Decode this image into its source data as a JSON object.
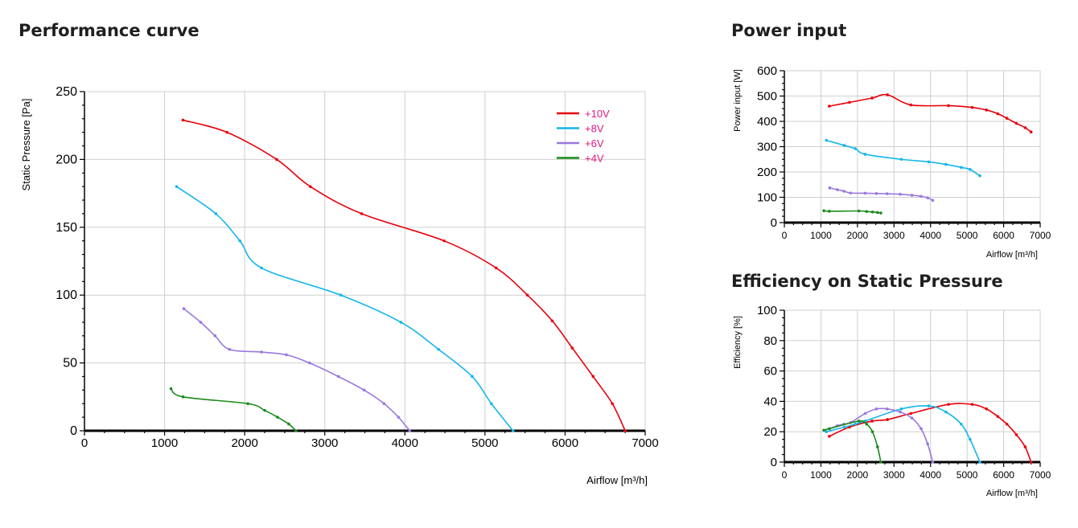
{
  "titles": {
    "performance": "Performance curve",
    "power": "Power input",
    "efficiency": "Efficiency on Static Pressure"
  },
  "chart_data": [
    {
      "id": "performance",
      "type": "line",
      "title": "Performance curve",
      "xlabel": "Airflow [m³/h]",
      "ylabel": "Static Pressure [Pa]",
      "xlim": [
        0,
        7000
      ],
      "ylim": [
        0,
        250
      ],
      "xticks": [
        0,
        1000,
        2000,
        3000,
        4000,
        5000,
        6000,
        7000
      ],
      "yticks": [
        0,
        50,
        100,
        150,
        200,
        250
      ],
      "grid": true,
      "legend": "top-right",
      "series": [
        {
          "name": "+10V",
          "color": "#e8000b",
          "x": [
            1230,
            1780,
            2400,
            2820,
            3460,
            4490,
            5140,
            5530,
            5840,
            6090,
            6350,
            6590,
            6750
          ],
          "y": [
            229,
            220,
            200,
            180,
            160,
            140,
            120,
            100,
            81,
            61,
            40,
            20,
            0
          ]
        },
        {
          "name": "+8V",
          "color": "#13b6ec",
          "x": [
            1150,
            1640,
            1940,
            2210,
            3200,
            3950,
            4420,
            4840,
            5080,
            5350
          ],
          "y": [
            180,
            160,
            140,
            120,
            100,
            80,
            60,
            40,
            20,
            0
          ]
        },
        {
          "name": "+6V",
          "color": "#9a78e0",
          "x": [
            1240,
            1450,
            1630,
            1810,
            2210,
            2520,
            2810,
            3170,
            3490,
            3740,
            3920,
            4060
          ],
          "y": [
            90,
            80,
            70,
            60,
            58,
            56,
            50,
            40,
            30,
            20,
            10,
            0
          ]
        },
        {
          "name": "+4V",
          "color": "#1b8a1b",
          "x": [
            1080,
            1230,
            2040,
            2250,
            2410,
            2550,
            2640
          ],
          "y": [
            31,
            25,
            20,
            15,
            10,
            5,
            0
          ]
        }
      ]
    },
    {
      "id": "power",
      "type": "line",
      "title": "Power input",
      "xlabel": "Airflow [m³/h]",
      "ylabel": "Power input [W]",
      "xlim": [
        0,
        7000
      ],
      "ylim": [
        0,
        600
      ],
      "xticks": [
        0,
        1000,
        2000,
        3000,
        4000,
        5000,
        6000,
        7000
      ],
      "yticks": [
        0,
        100,
        200,
        300,
        400,
        500,
        600
      ],
      "grid": true,
      "series": [
        {
          "name": "+10V",
          "color": "#e8000b",
          "x": [
            1230,
            1780,
            2400,
            2820,
            3460,
            4490,
            5140,
            5530,
            5840,
            6090,
            6350,
            6590,
            6750
          ],
          "y": [
            460,
            475,
            492,
            505,
            465,
            462,
            455,
            445,
            430,
            412,
            392,
            375,
            358
          ]
        },
        {
          "name": "+8V",
          "color": "#13b6ec",
          "x": [
            1150,
            1640,
            1940,
            2210,
            3200,
            3950,
            4420,
            4840,
            5080,
            5350
          ],
          "y": [
            325,
            305,
            292,
            270,
            250,
            240,
            230,
            218,
            210,
            185
          ]
        },
        {
          "name": "+6V",
          "color": "#9a78e0",
          "x": [
            1240,
            1450,
            1630,
            1810,
            2210,
            2520,
            2810,
            3170,
            3490,
            3740,
            3920,
            4060
          ],
          "y": [
            137,
            130,
            124,
            117,
            116,
            115,
            114,
            112,
            108,
            104,
            98,
            88
          ]
        },
        {
          "name": "+4V",
          "color": "#1b8a1b",
          "x": [
            1080,
            1230,
            2040,
            2250,
            2410,
            2550,
            2640
          ],
          "y": [
            47,
            45,
            46,
            44,
            42,
            40,
            38
          ]
        }
      ]
    },
    {
      "id": "efficiency",
      "type": "line",
      "title": "Efficiency on Static Pressure",
      "xlabel": "Airflow [m³/h]",
      "ylabel": "Efficiency [%]",
      "xlim": [
        0,
        7000
      ],
      "ylim": [
        0,
        100
      ],
      "xticks": [
        0,
        1000,
        2000,
        3000,
        4000,
        5000,
        6000,
        7000
      ],
      "yticks": [
        0,
        20,
        40,
        60,
        80,
        100
      ],
      "grid": true,
      "series": [
        {
          "name": "+10V",
          "color": "#e8000b",
          "x": [
            1230,
            1780,
            2400,
            2820,
            3460,
            4490,
            5140,
            5530,
            5840,
            6090,
            6350,
            6590,
            6750
          ],
          "y": [
            17,
            23,
            27,
            28,
            32,
            38,
            38,
            35,
            30,
            25,
            18,
            10,
            0
          ]
        },
        {
          "name": "+8V",
          "color": "#13b6ec",
          "x": [
            1150,
            1640,
            1940,
            2210,
            3200,
            3950,
            4420,
            4840,
            5080,
            5350
          ],
          "y": [
            20,
            23,
            25,
            27,
            35,
            37,
            33,
            25,
            15,
            0
          ]
        },
        {
          "name": "+6V",
          "color": "#9a78e0",
          "x": [
            1240,
            1450,
            1630,
            1810,
            2210,
            2520,
            2810,
            3170,
            3490,
            3740,
            3920,
            4060
          ],
          "y": [
            22,
            24,
            25,
            26,
            32,
            35,
            35,
            33,
            29,
            22,
            12,
            0
          ]
        },
        {
          "name": "+4V",
          "color": "#1b8a1b",
          "x": [
            1080,
            1230,
            2040,
            2250,
            2410,
            2550,
            2640
          ],
          "y": [
            21,
            22,
            27,
            25,
            20,
            10,
            0
          ]
        }
      ]
    }
  ]
}
